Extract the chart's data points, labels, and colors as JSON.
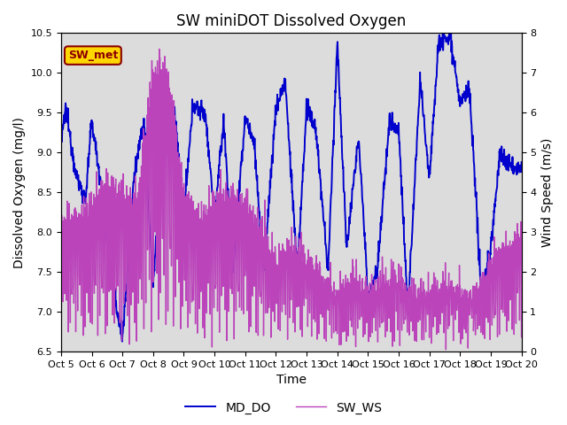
{
  "title": "SW miniDOT Dissolved Oxygen",
  "xlabel": "Time",
  "ylabel_left": "Dissolved Oxygen (mg/l)",
  "ylabel_right": "Wind Speed (m/s)",
  "annotation_text": "SW_met",
  "annotation_color": "#8B0000",
  "annotation_bg": "#FFD700",
  "annotation_border": "#8B0000",
  "line_MD_DO_color": "#0000CD",
  "line_SW_WS_color": "#BB44BB",
  "ylim_left": [
    6.5,
    10.5
  ],
  "ylim_right": [
    0.0,
    8.0
  ],
  "yticks_left": [
    6.5,
    7.0,
    7.5,
    8.0,
    8.5,
    9.0,
    9.5,
    10.0,
    10.5
  ],
  "yticks_right": [
    0.0,
    1.0,
    2.0,
    3.0,
    4.0,
    5.0,
    6.0,
    7.0,
    8.0
  ],
  "xtick_labels": [
    "Oct 5",
    "Oct 6",
    "Oct 7",
    "Oct 8",
    "Oct 9",
    "Oct 10",
    "Oct 11",
    "Oct 12",
    "Oct 13",
    "Oct 14",
    "Oct 15",
    "Oct 16",
    "Oct 17",
    "Oct 18",
    "Oct 19",
    "Oct 20"
  ],
  "legend_labels": [
    "MD_DO",
    "SW_WS"
  ],
  "bg_color": "#DCDCDC",
  "fig_bg_color": "#FFFFFF",
  "title_fontsize": 12,
  "axis_label_fontsize": 10,
  "tick_fontsize": 8,
  "legend_fontsize": 10,
  "linewidth_DO": 1.4,
  "linewidth_WS": 1.0
}
